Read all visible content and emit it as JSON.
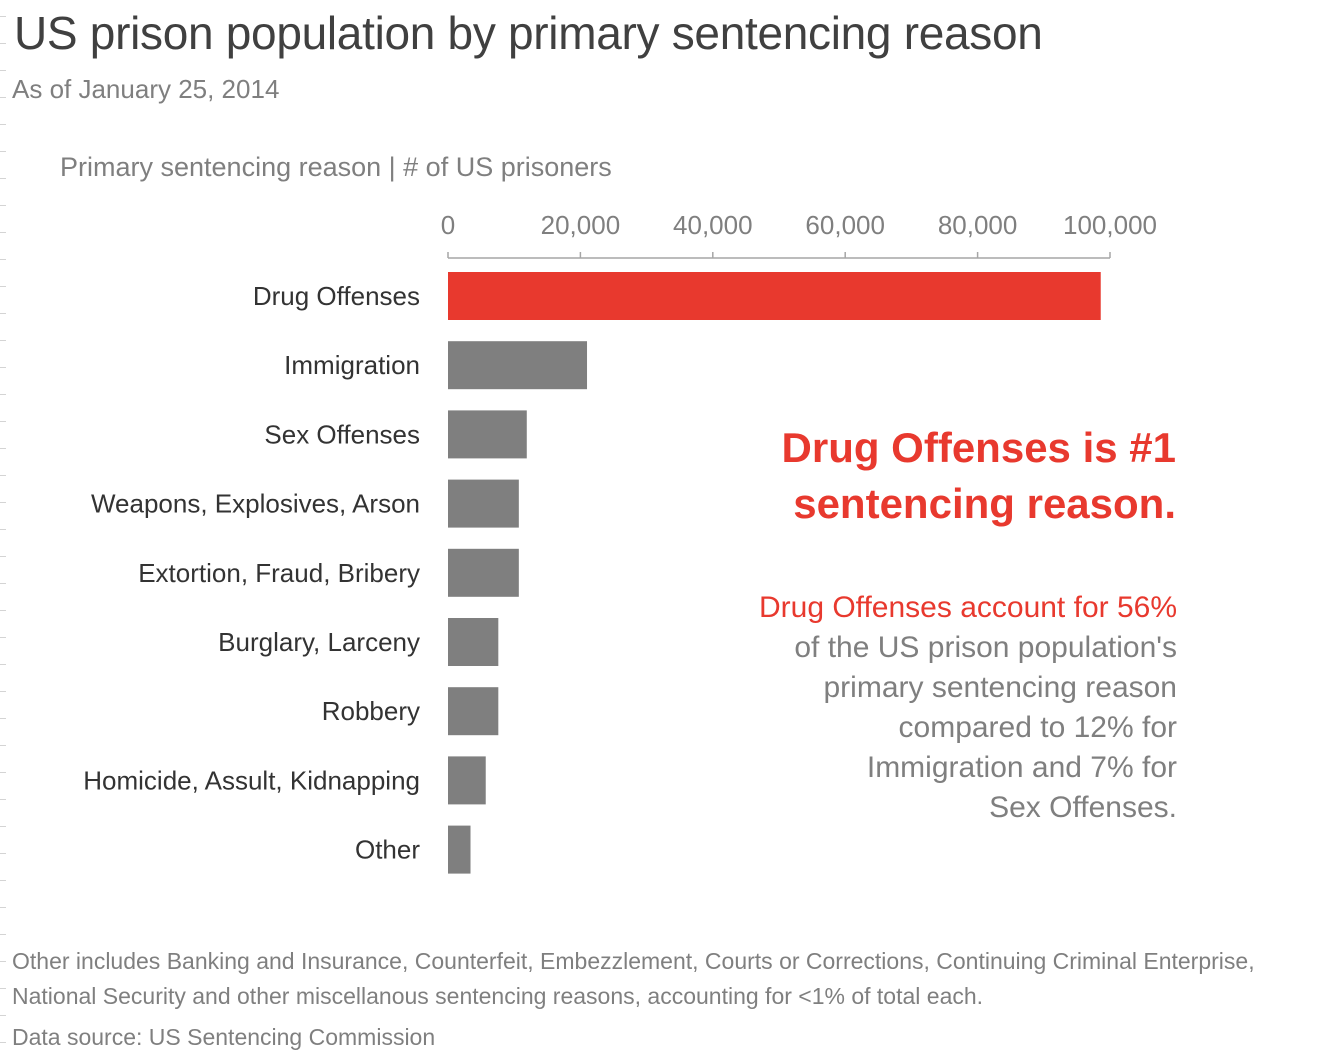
{
  "title": "US prison population by primary sentencing reason",
  "subtitle": "As of January 25, 2014",
  "axis_caption": "Primary sentencing reason | # of US prisoners",
  "callout": {
    "headline_line1": "Drug Offenses is #1",
    "headline_line2": "sentencing reason.",
    "highlight": "Drug Offenses account for 56%",
    "line2": "of the US prison population's",
    "line3": "primary sentencing reason",
    "line4": "compared to 12% for",
    "line5": "Immigration and 7% for",
    "line6": "Sex Offenses."
  },
  "footnote": "Other includes Banking and Insurance, Counterfeit, Embezzlement, Courts or Corrections, Continuing Criminal Enterprise, National Security and other miscellanous sentencing reasons, accounting for <1% of total each.",
  "source": "Data source: US Sentencing Commission",
  "colors": {
    "highlight": "#e8392e",
    "bar": "#7f7f7f",
    "text_dark": "#404040",
    "text_muted": "#7f7f7f"
  },
  "chart_data": {
    "type": "bar",
    "orientation": "horizontal",
    "categories": [
      "Drug Offenses",
      "Immigration",
      "Sex Offenses",
      "Weapons, Explosives, Arson",
      "Extortion, Fraud, Bribery",
      "Burglary, Larceny",
      "Robbery",
      "Homicide, Assult, Kidnapping",
      "Other"
    ],
    "values": [
      98600,
      21000,
      11900,
      10700,
      10700,
      7600,
      7600,
      5700,
      3400
    ],
    "highlight_index": 0,
    "xlim": [
      0,
      100000
    ],
    "xticks": [
      0,
      20000,
      40000,
      60000,
      80000,
      100000
    ],
    "xtick_labels": [
      "0",
      "20,000",
      "40,000",
      "60,000",
      "80,000",
      "100,000"
    ],
    "axis_position": "top",
    "grid": false,
    "legend": "none"
  }
}
